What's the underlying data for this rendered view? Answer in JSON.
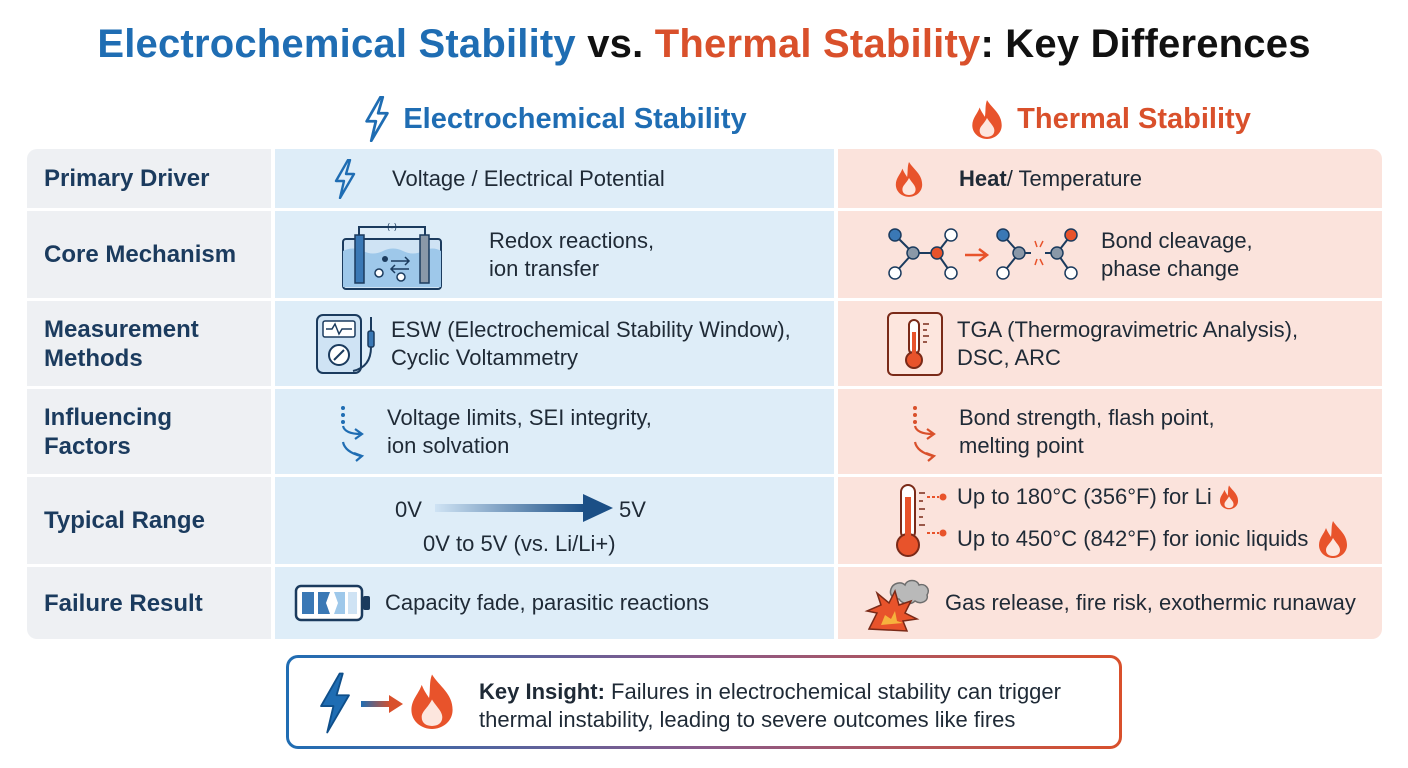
{
  "title": {
    "part1": "Electrochemical Stability",
    "part2": "vs.",
    "part3": "Thermal Stability",
    "part4": ": Key Differences"
  },
  "columns": {
    "electrochemical": "Electrochemical Stability",
    "thermal": "Thermal Stability"
  },
  "rows": {
    "primary_driver": {
      "label": "Primary Driver",
      "electrochemical": "Voltage / Electrical Potential",
      "thermal_bold": "Heat",
      "thermal_rest": " / Temperature"
    },
    "core_mechanism": {
      "label": "Core Mechanism",
      "electrochemical": "Redox reactions,\nion transfer",
      "thermal": "Bond cleavage,\nphase change"
    },
    "measurement_methods": {
      "label": "Measurement\nMethods",
      "electrochemical": "ESW (Electrochemical Stability Window),\nCyclic Voltammetry",
      "thermal": "TGA (Thermogravimetric Analysis),\nDSC, ARC"
    },
    "influencing_factors": {
      "label": "Influencing\nFactors",
      "electrochemical": "Voltage limits, SEI integrity,\nion solvation",
      "thermal": "Bond strength, flash point,\nmelting point"
    },
    "typical_range": {
      "label": "Typical Range",
      "ec_start": "0V",
      "ec_end": "5V",
      "electrochemical": "0V to 5V (vs. Li/Li+)",
      "thermal_line1": "Up to 180°C (356°F) for Li",
      "thermal_line2": "Up to 450°C (842°F) for ionic liquids"
    },
    "failure_result": {
      "label": "Failure Result",
      "electrochemical": "Capacity fade, parasitic reactions",
      "thermal": "Gas release, fire risk, exothermic runaway"
    }
  },
  "insight": {
    "key": "Key Insight:",
    "text": " Failures in electrochemical stability can trigger thermal instability, leading to severe outcomes like fires"
  },
  "icons": {
    "electrochemical": "lightning-bolt-icon",
    "thermal": "flame-icon"
  },
  "colors": {
    "blue": "#1f6db3",
    "red": "#d9502b",
    "label_bg": "#eef0f3",
    "ec_bg": "#deedf8",
    "th_bg": "#fbe3dc",
    "label_text": "#1b3b5e"
  }
}
